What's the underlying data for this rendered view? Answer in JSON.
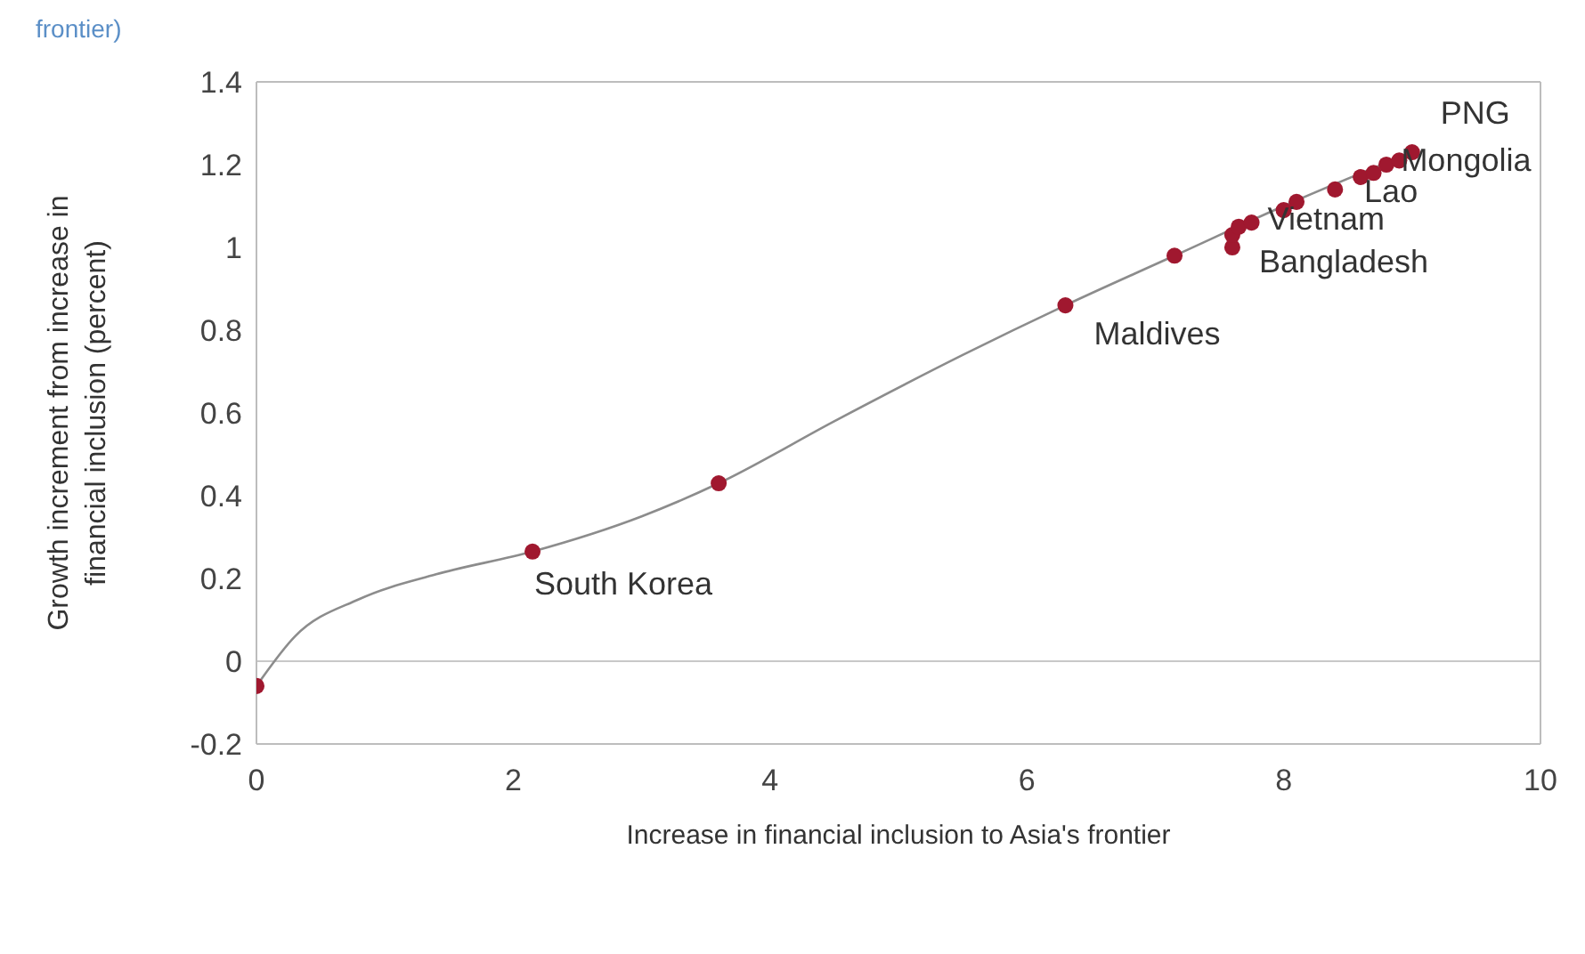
{
  "chart_data": {
    "type": "scatter",
    "xlabel": "Increase in financial inclusion to Asia's frontier",
    "ylabel": "Growth increment from increase in financial inclusion (percent)",
    "xlim": [
      0,
      10
    ],
    "xticks": [
      0,
      2,
      4,
      6,
      8,
      10
    ],
    "ylim": [
      -0.2,
      1.4
    ],
    "yticks": [
      -0.2,
      0,
      0.2,
      0.4,
      0.6,
      0.8,
      1,
      1.2,
      1.4
    ],
    "grid": false,
    "ref_lines": [
      {
        "axis": "y",
        "value": 0,
        "color": "#c8c8c8"
      }
    ],
    "series": [
      {
        "type": "line",
        "marker": "none",
        "color": "#8c8c8c",
        "x": [
          0,
          0.3,
          0.8,
          1.4,
          2.15,
          3,
          3.6,
          4.5,
          5.5,
          6.3,
          7.15,
          8,
          9
        ],
        "values": [
          -0.06,
          0.06,
          0.15,
          0.21,
          0.265,
          0.35,
          0.43,
          0.58,
          0.74,
          0.86,
          0.98,
          1.1,
          1.23
        ]
      },
      {
        "marker": "circle",
        "color": "#a0182f",
        "x": [
          0,
          2.15,
          3.6,
          6.3,
          7.15,
          7.6,
          7.6,
          7.65,
          7.75,
          8,
          8.1,
          8.4,
          8.6,
          8.7,
          8.8,
          8.9,
          9
        ],
        "values": [
          -0.06,
          0.265,
          0.43,
          0.86,
          0.98,
          1,
          1.03,
          1.05,
          1.06,
          1.09,
          1.11,
          1.14,
          1.17,
          1.18,
          1.2,
          1.21,
          1.23
        ]
      }
    ],
    "annotations": [
      "frontier)",
      {
        "text": "South Korea",
        "x": 2.15,
        "y": 0.265
      },
      {
        "text": "Maldives",
        "x": 6.3,
        "y": 0.86
      },
      {
        "text": "Bangladesh",
        "x": 7.6,
        "y": 1
      },
      {
        "text": "Vietnam",
        "x": 8,
        "y": 1.09
      },
      {
        "text": "Lao",
        "x": 8.6,
        "y": 1.17
      },
      {
        "text": "Mongolia",
        "x": 8.9,
        "y": 1.21
      },
      {
        "text": "PNG",
        "x": 9,
        "y": 1.23
      }
    ]
  }
}
